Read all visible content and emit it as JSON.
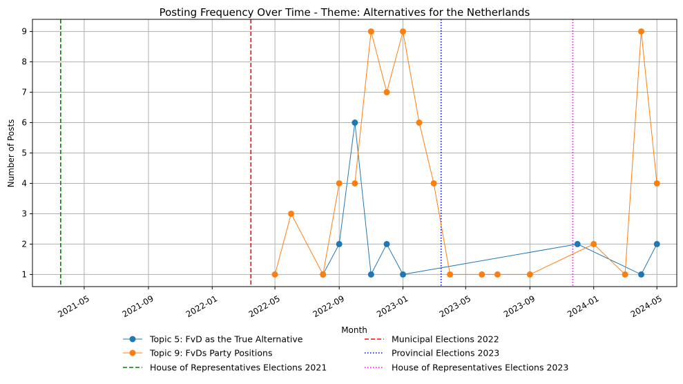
{
  "chart_data": {
    "type": "line",
    "title": "Posting Frequency Over Time - Theme: Alternatives for the Netherlands",
    "xlabel": "Month",
    "ylabel": "Number of Posts",
    "x_axis_type": "date",
    "xlim": [
      "2021-01-22",
      "2024-06-08"
    ],
    "ylim": [
      0.6,
      9.4
    ],
    "x_ticks": [
      "2021-05-01",
      "2021-09-01",
      "2022-01-01",
      "2022-05-01",
      "2022-09-01",
      "2023-01-01",
      "2023-05-01",
      "2023-09-01",
      "2024-01-01",
      "2024-05-01"
    ],
    "x_tick_labels": [
      "2021-05",
      "2021-09",
      "2022-01",
      "2022-05",
      "2022-09",
      "2023-01",
      "2023-05",
      "2023-09",
      "2024-01",
      "2024-05"
    ],
    "y_ticks": [
      1,
      2,
      3,
      4,
      5,
      6,
      7,
      8,
      9
    ],
    "grid": true,
    "legend_position": "below-center",
    "series": [
      {
        "name": "Topic 5: FvD as the True Alternative",
        "color": "#1f77b4",
        "x": [
          "2022-08-01",
          "2022-09-01",
          "2022-10-01",
          "2022-11-01",
          "2022-12-01",
          "2023-01-01",
          "2023-12-01",
          "2024-04-01",
          "2024-05-01"
        ],
        "y": [
          1,
          2,
          6,
          1,
          2,
          1,
          2,
          1,
          2
        ]
      },
      {
        "name": "Topic 9: FvDs Party Positions",
        "color": "#ff7f0e",
        "x": [
          "2022-05-01",
          "2022-06-01",
          "2022-08-01",
          "2022-09-01",
          "2022-10-01",
          "2022-11-01",
          "2022-12-01",
          "2023-01-01",
          "2023-02-01",
          "2023-03-01",
          "2023-04-01",
          "2023-06-01",
          "2023-07-01",
          "2023-09-01",
          "2024-01-01",
          "2024-03-01",
          "2024-04-01",
          "2024-05-01"
        ],
        "y": [
          1,
          3,
          1,
          4,
          4,
          9,
          7,
          9,
          6,
          4,
          1,
          1,
          1,
          1,
          2,
          1,
          9,
          4
        ]
      }
    ],
    "vlines": [
      {
        "name": "House of Representatives Elections 2021",
        "x": "2021-03-17",
        "color": "#008000",
        "style": "dashed"
      },
      {
        "name": "Municipal Elections 2022",
        "x": "2022-03-16",
        "color": "#ff0000",
        "style": "dashed"
      },
      {
        "name": "Provincial Elections 2023",
        "x": "2023-03-15",
        "color": "#0000cc",
        "style": "dotted"
      },
      {
        "name": "House of Representatives Elections 2023",
        "x": "2023-11-22",
        "color": "#ff00ff",
        "style": "dotted"
      }
    ]
  }
}
